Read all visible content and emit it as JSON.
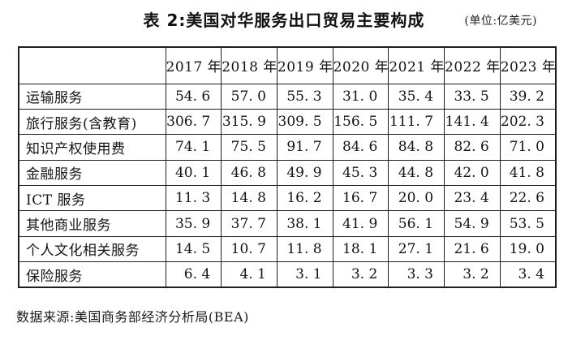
{
  "page": {
    "background": "#ffffff",
    "text_color": "#161616",
    "border_color": "#1f1f1f"
  },
  "header": {
    "title": "表 2:美国对华服务出口贸易主要构成",
    "unit_note": "(单位:亿美元)"
  },
  "table": {
    "columns": [
      "2017 年",
      "2018 年",
      "2019 年",
      "2020 年",
      "2021 年",
      "2022 年",
      "2023 年"
    ],
    "rows": [
      {
        "label": "运输服务",
        "values": [
          "54.6",
          "57.0",
          "55.3",
          "31.0",
          "35.4",
          "33.5",
          "39.2"
        ]
      },
      {
        "label": "旅行服务(含教育)",
        "values": [
          "306.7",
          "315.9",
          "309.5",
          "156.5",
          "111.7",
          "141.4",
          "202.3"
        ]
      },
      {
        "label": "知识产权使用费",
        "values": [
          "74.1",
          "75.5",
          "91.7",
          "84.6",
          "84.8",
          "82.6",
          "71.0"
        ]
      },
      {
        "label": "金融服务",
        "values": [
          "40.1",
          "46.8",
          "49.9",
          "45.3",
          "44.8",
          "42.0",
          "41.8"
        ]
      },
      {
        "label": "ICT 服务",
        "values": [
          "11.3",
          "14.8",
          "16.2",
          "16.7",
          "20.0",
          "23.4",
          "22.6"
        ]
      },
      {
        "label": "其他商业服务",
        "values": [
          "35.9",
          "37.7",
          "38.1",
          "41.9",
          "56.1",
          "54.9",
          "53.5"
        ]
      },
      {
        "label": "个人文化相关服务",
        "values": [
          "14.5",
          "10.7",
          "11.8",
          "18.1",
          "27.1",
          "21.6",
          "19.0"
        ]
      },
      {
        "label": "保险服务",
        "values": [
          "6.4",
          "4.1",
          "3.1",
          "3.2",
          "3.3",
          "3.2",
          "3.4"
        ]
      }
    ]
  },
  "footer": {
    "source": "数据来源:美国商务部经济分析局(BEA)"
  }
}
